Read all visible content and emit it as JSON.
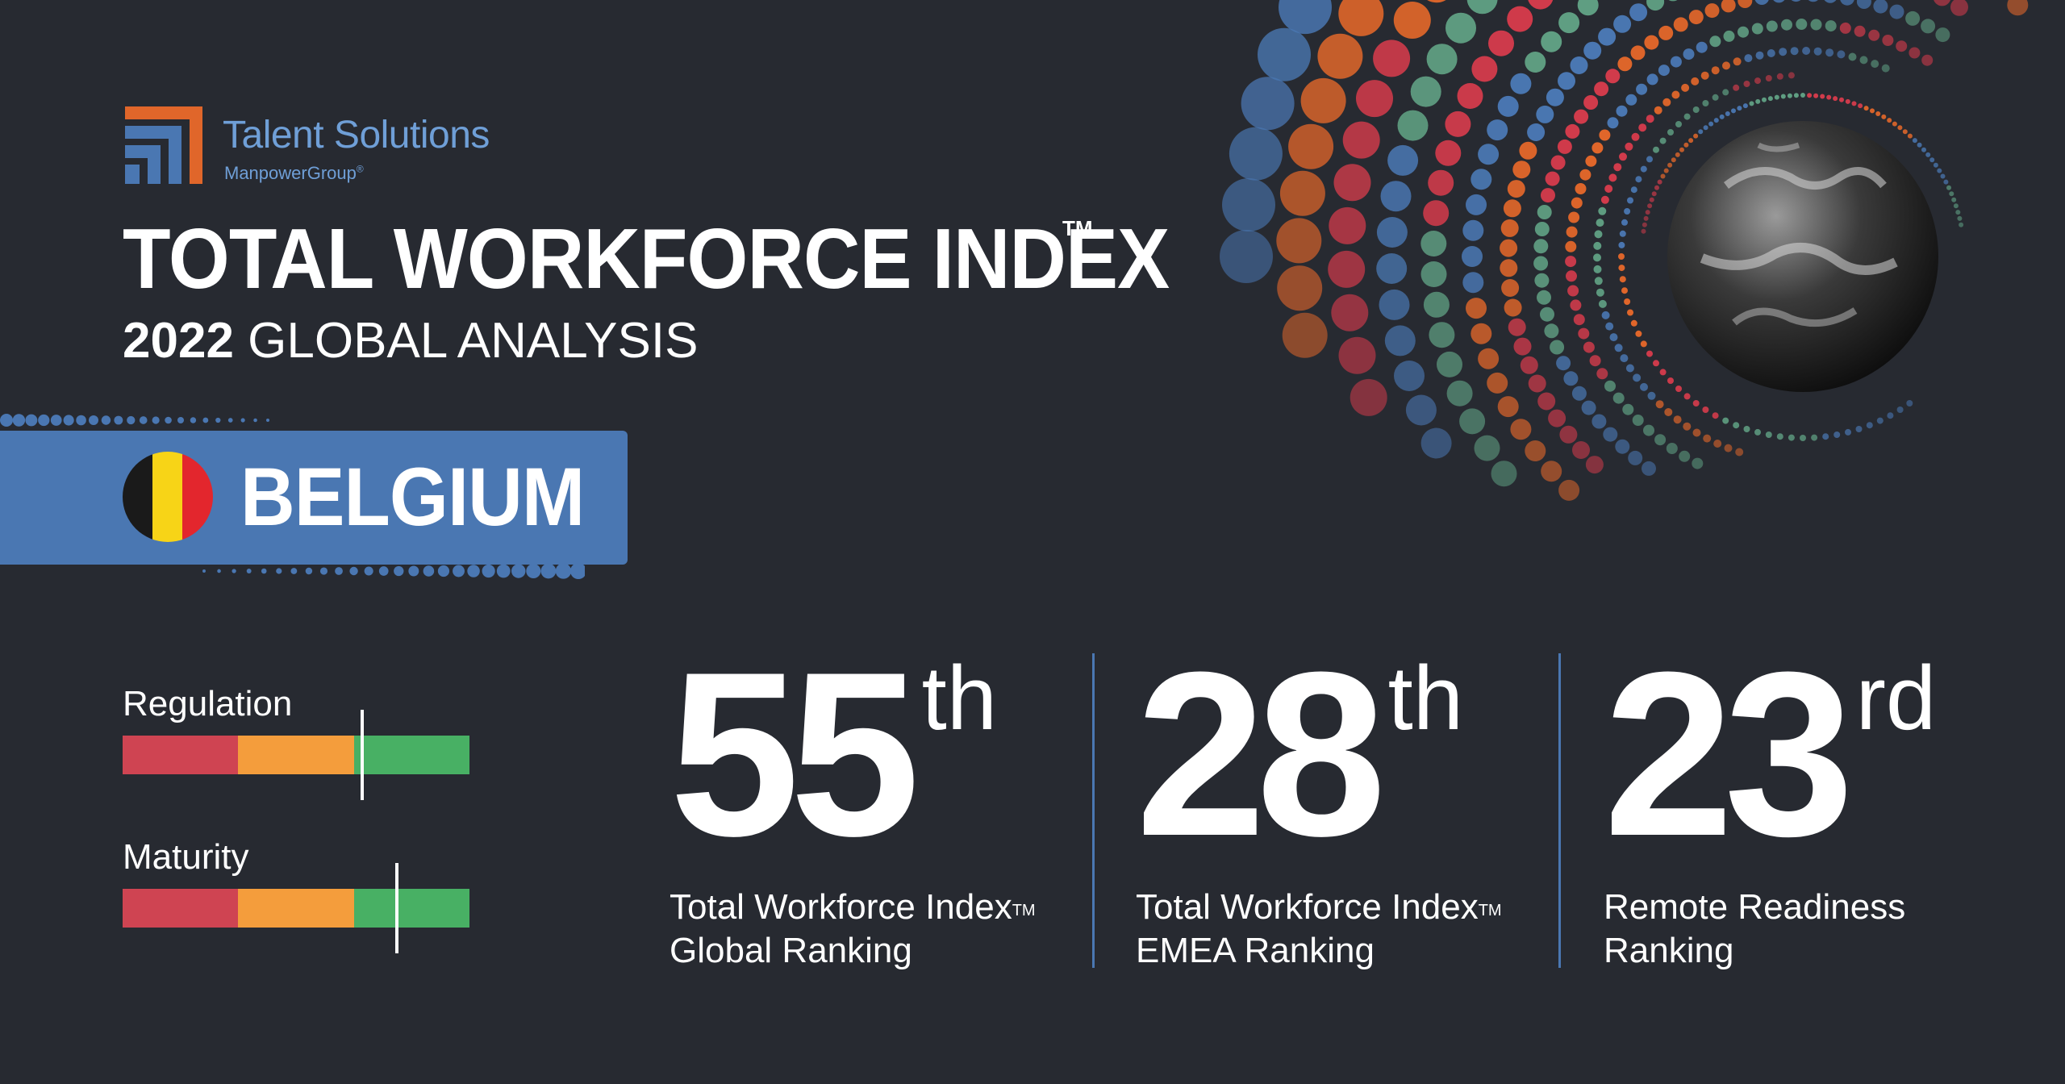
{
  "brand": {
    "name": "Talent Solutions",
    "parent": "ManpowerGroup",
    "parent_mark": "®",
    "colors": {
      "orange": "#e0662a",
      "blue": "#4a77b2",
      "text": "#6f9fd7"
    }
  },
  "header": {
    "title": "TOTAL WORKFORCE INDEX",
    "title_mark": "TM",
    "year": "2022",
    "subtitle": "GLOBAL ANALYSIS"
  },
  "country": {
    "name": "BELGIUM",
    "flag_icon": "belgium-flag-icon",
    "flag_colors": [
      "#1a1a1a",
      "#f7d417",
      "#e3262d"
    ]
  },
  "gauges": [
    {
      "label": "Regulation",
      "marker_fraction": 0.69
    },
    {
      "label": "Maturity",
      "marker_fraction": 0.79
    }
  ],
  "gauge_colors": {
    "low": "#cf4452",
    "mid": "#f49d3c",
    "high": "#48b064"
  },
  "rankings": [
    {
      "number": "55",
      "suffix": "th",
      "line1": "Total Workforce Index",
      "line1_mark": "TM",
      "line2": "Global Ranking"
    },
    {
      "number": "28",
      "suffix": "th",
      "line1": "Total Workforce Index",
      "line1_mark": "TM",
      "line2": "EMEA Ranking"
    },
    {
      "number": "23",
      "suffix": "rd",
      "line1": "Remote Readiness",
      "line1_mark": "",
      "line2": "Ranking"
    }
  ],
  "decor": {
    "globe_icon": "earth-globe-icon",
    "dot_palette": [
      "#e0662a",
      "#4a77b2",
      "#5f9e82",
      "#d13b4b"
    ]
  }
}
